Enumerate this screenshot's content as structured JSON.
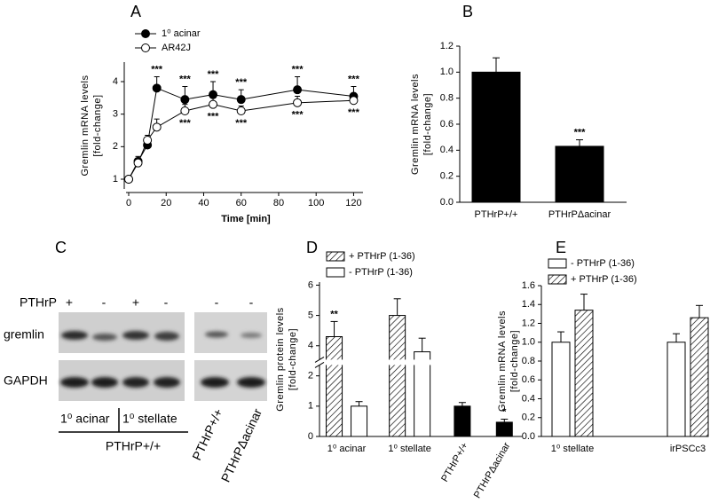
{
  "blot": {
    "panel": "C",
    "treatment_label": "PTHrP",
    "treatments": [
      "+",
      "-",
      "+",
      "-",
      "-",
      "-"
    ],
    "rows": [
      "gremlin",
      "GAPDH"
    ],
    "groups": [
      "1⁰ acinar",
      "1⁰ stellate"
    ],
    "group_label": "PTHrP+/+",
    "genotypes": [
      "PTHrP+/+",
      "PTHrPΔacinar"
    ]
  },
  "chart_data": [
    {
      "panel": "A",
      "type": "line",
      "x_label": "Time [min]",
      "y_label": [
        "Gremlin mRNA levels",
        "[fold-change]"
      ],
      "x": [
        0,
        5,
        10,
        15,
        30,
        45,
        60,
        90,
        120
      ],
      "series": [
        {
          "name": "1⁰ acinar",
          "color": "#000000",
          "marker": "filled",
          "values": [
            1.0,
            1.55,
            2.05,
            3.8,
            3.45,
            3.6,
            3.45,
            3.75,
            3.55
          ],
          "errors": [
            0,
            0.15,
            0.1,
            0.35,
            0.4,
            0.4,
            0.3,
            0.4,
            0.3
          ],
          "significance": [
            null,
            null,
            null,
            "***",
            "***",
            "***",
            "***",
            "***",
            "***"
          ]
        },
        {
          "name": "AR42J",
          "color": "#000000",
          "marker": "open",
          "values": [
            1.0,
            1.5,
            2.2,
            2.6,
            3.1,
            3.3,
            3.1,
            3.35,
            3.42
          ],
          "errors": [
            0,
            0.15,
            0.15,
            0.25,
            0.2,
            0.2,
            0.15,
            0.2,
            0.15
          ],
          "significance": [
            null,
            null,
            null,
            null,
            "***",
            "***",
            "***",
            "***",
            "***"
          ]
        }
      ],
      "xlim": [
        0,
        125
      ],
      "xticks": [
        0,
        20,
        40,
        60,
        80,
        100,
        120
      ],
      "ylim": [
        0.7,
        4.6
      ],
      "yticks": [
        1,
        2,
        3,
        4
      ],
      "legend": "top-left"
    },
    {
      "panel": "B",
      "type": "bar",
      "y_label": [
        "Gremlin mRNA levels",
        "[fold-change]"
      ],
      "categories": [
        "PTHrP+/+",
        "PTHrPΔacinar"
      ],
      "series": [
        {
          "color": "#000000",
          "hatch": false,
          "values": [
            1.0,
            0.43
          ],
          "errors": [
            0.11,
            0.05
          ],
          "significance": [
            null,
            "***"
          ]
        }
      ],
      "ylim": [
        0,
        1.2
      ],
      "yticks": [
        {
          "value": 0,
          "label": "0.0"
        },
        0.2,
        0.4,
        0.6,
        0.8,
        {
          "value": 1,
          "label": "1.0"
        },
        1.2
      ]
    },
    {
      "panel": "D",
      "type": "bar",
      "y_label": [
        "Gremlin protein levels",
        "[fold-change]"
      ],
      "categories": [
        "1⁰ acinar",
        "1⁰ stellate",
        "PTHrP+/+",
        "PTHrPΔacinar"
      ],
      "series": [
        {
          "name": "+ PTHrP (1-36)",
          "color": "#ffffff",
          "hatch": true,
          "values": [
            4.3,
            5.0,
            null,
            null
          ],
          "errors": [
            0.5,
            0.55,
            null,
            null
          ],
          "significance": [
            "**",
            null,
            null,
            null
          ]
        },
        {
          "name": "- PTHrP (1-36)",
          "color": "#ffffff",
          "hatch": false,
          "values": [
            1.0,
            3.8,
            null,
            null
          ],
          "errors": [
            0.15,
            0.45,
            null,
            null
          ],
          "significance": [
            null,
            null,
            null,
            null
          ]
        },
        {
          "color": "#000000",
          "hatch": false,
          "values": [
            null,
            null,
            1.0,
            0.47
          ],
          "errors": [
            null,
            null,
            0.12,
            0.1
          ],
          "significance": [
            null,
            null,
            null,
            "*"
          ]
        }
      ],
      "ylim": [
        0,
        6.1
      ],
      "axis_break": [
        2.3,
        3.6
      ],
      "yticks": [
        0,
        1,
        2,
        4,
        5,
        6
      ],
      "legend": "top-left"
    },
    {
      "panel": "E",
      "type": "bar",
      "y_label": [
        "Gremlin mRNA levels",
        "[fold-change]"
      ],
      "categories": [
        "1⁰ stellate",
        "irPSCc3"
      ],
      "series": [
        {
          "name": "- PTHrP (1-36)",
          "color": "#ffffff",
          "hatch": false,
          "values": [
            1.0,
            1.0
          ],
          "errors": [
            0.11,
            0.09
          ],
          "significance": [
            null,
            null
          ]
        },
        {
          "name": "+ PTHrP (1-36)",
          "color": "#ffffff",
          "hatch": true,
          "values": [
            1.34,
            1.26
          ],
          "errors": [
            0.17,
            0.13
          ],
          "significance": [
            null,
            null
          ]
        }
      ],
      "ylim": [
        0,
        1.6
      ],
      "yticks": [
        {
          "value": 0,
          "label": "0.0"
        },
        0.2,
        0.4,
        0.6,
        0.8,
        {
          "value": 1,
          "label": "1.0"
        },
        1.2,
        1.4,
        1.6
      ],
      "legend": "top-left"
    }
  ]
}
